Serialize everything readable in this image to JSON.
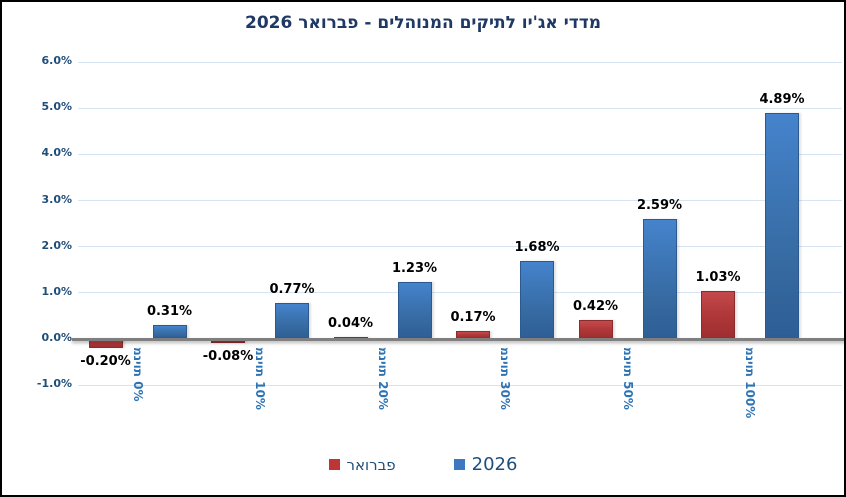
{
  "title": "מדדי אג'יו לתיקים המנוהלים  -  פברואר 2026",
  "colors": {
    "title_text": "#1F3864",
    "axis_text": "#1F4E79",
    "category_text": "#2E74B5",
    "gridline": "#D7E4F1",
    "zero_line": "#7F7F7F",
    "red_series": "#AE3638",
    "blue_series": "#3B76BE",
    "data_label": "#000000"
  },
  "legend": {
    "items": [
      {
        "label": "פברואר",
        "color": "#BE3538",
        "font_size": 15
      },
      {
        "label": "2026",
        "color": "#3D79C0",
        "font_size": 18
      }
    ]
  },
  "chart_data": {
    "type": "bar",
    "title": "מדדי אג'יו לתיקים המנוהלים  -  פברואר 2026",
    "categories": [
      "מניות 0%",
      "מניות 10%",
      "מניות 20%",
      "מניות 30%",
      "מניות 50%",
      "מניות 100%"
    ],
    "series": [
      {
        "name": "פברואר",
        "color": "red",
        "values": [
          -0.2,
          -0.08,
          0.04,
          0.17,
          0.42,
          1.03
        ]
      },
      {
        "name": "2026",
        "color": "blue",
        "values": [
          0.31,
          0.77,
          1.23,
          1.68,
          2.59,
          4.89
        ]
      }
    ],
    "data_labels": [
      [
        "-0.20%",
        "-0.08%",
        "0.04%",
        "0.17%",
        "0.42%",
        "1.03%"
      ],
      [
        "0.31%",
        "0.77%",
        "1.23%",
        "1.68%",
        "2.59%",
        "4.89%"
      ]
    ],
    "y_ticks": [
      "6.0%",
      "5.0%",
      "4.0%",
      "3.0%",
      "2.0%",
      "1.0%",
      "0.0%",
      "-1.0%"
    ],
    "y_tick_values": [
      6,
      5,
      4,
      3,
      2,
      1,
      0,
      -1
    ],
    "ylim": [
      -1.0,
      6.0
    ],
    "xlabel": "",
    "ylabel": "",
    "grid": true,
    "legend_position": "bottom",
    "category_labels_rotated": true
  }
}
